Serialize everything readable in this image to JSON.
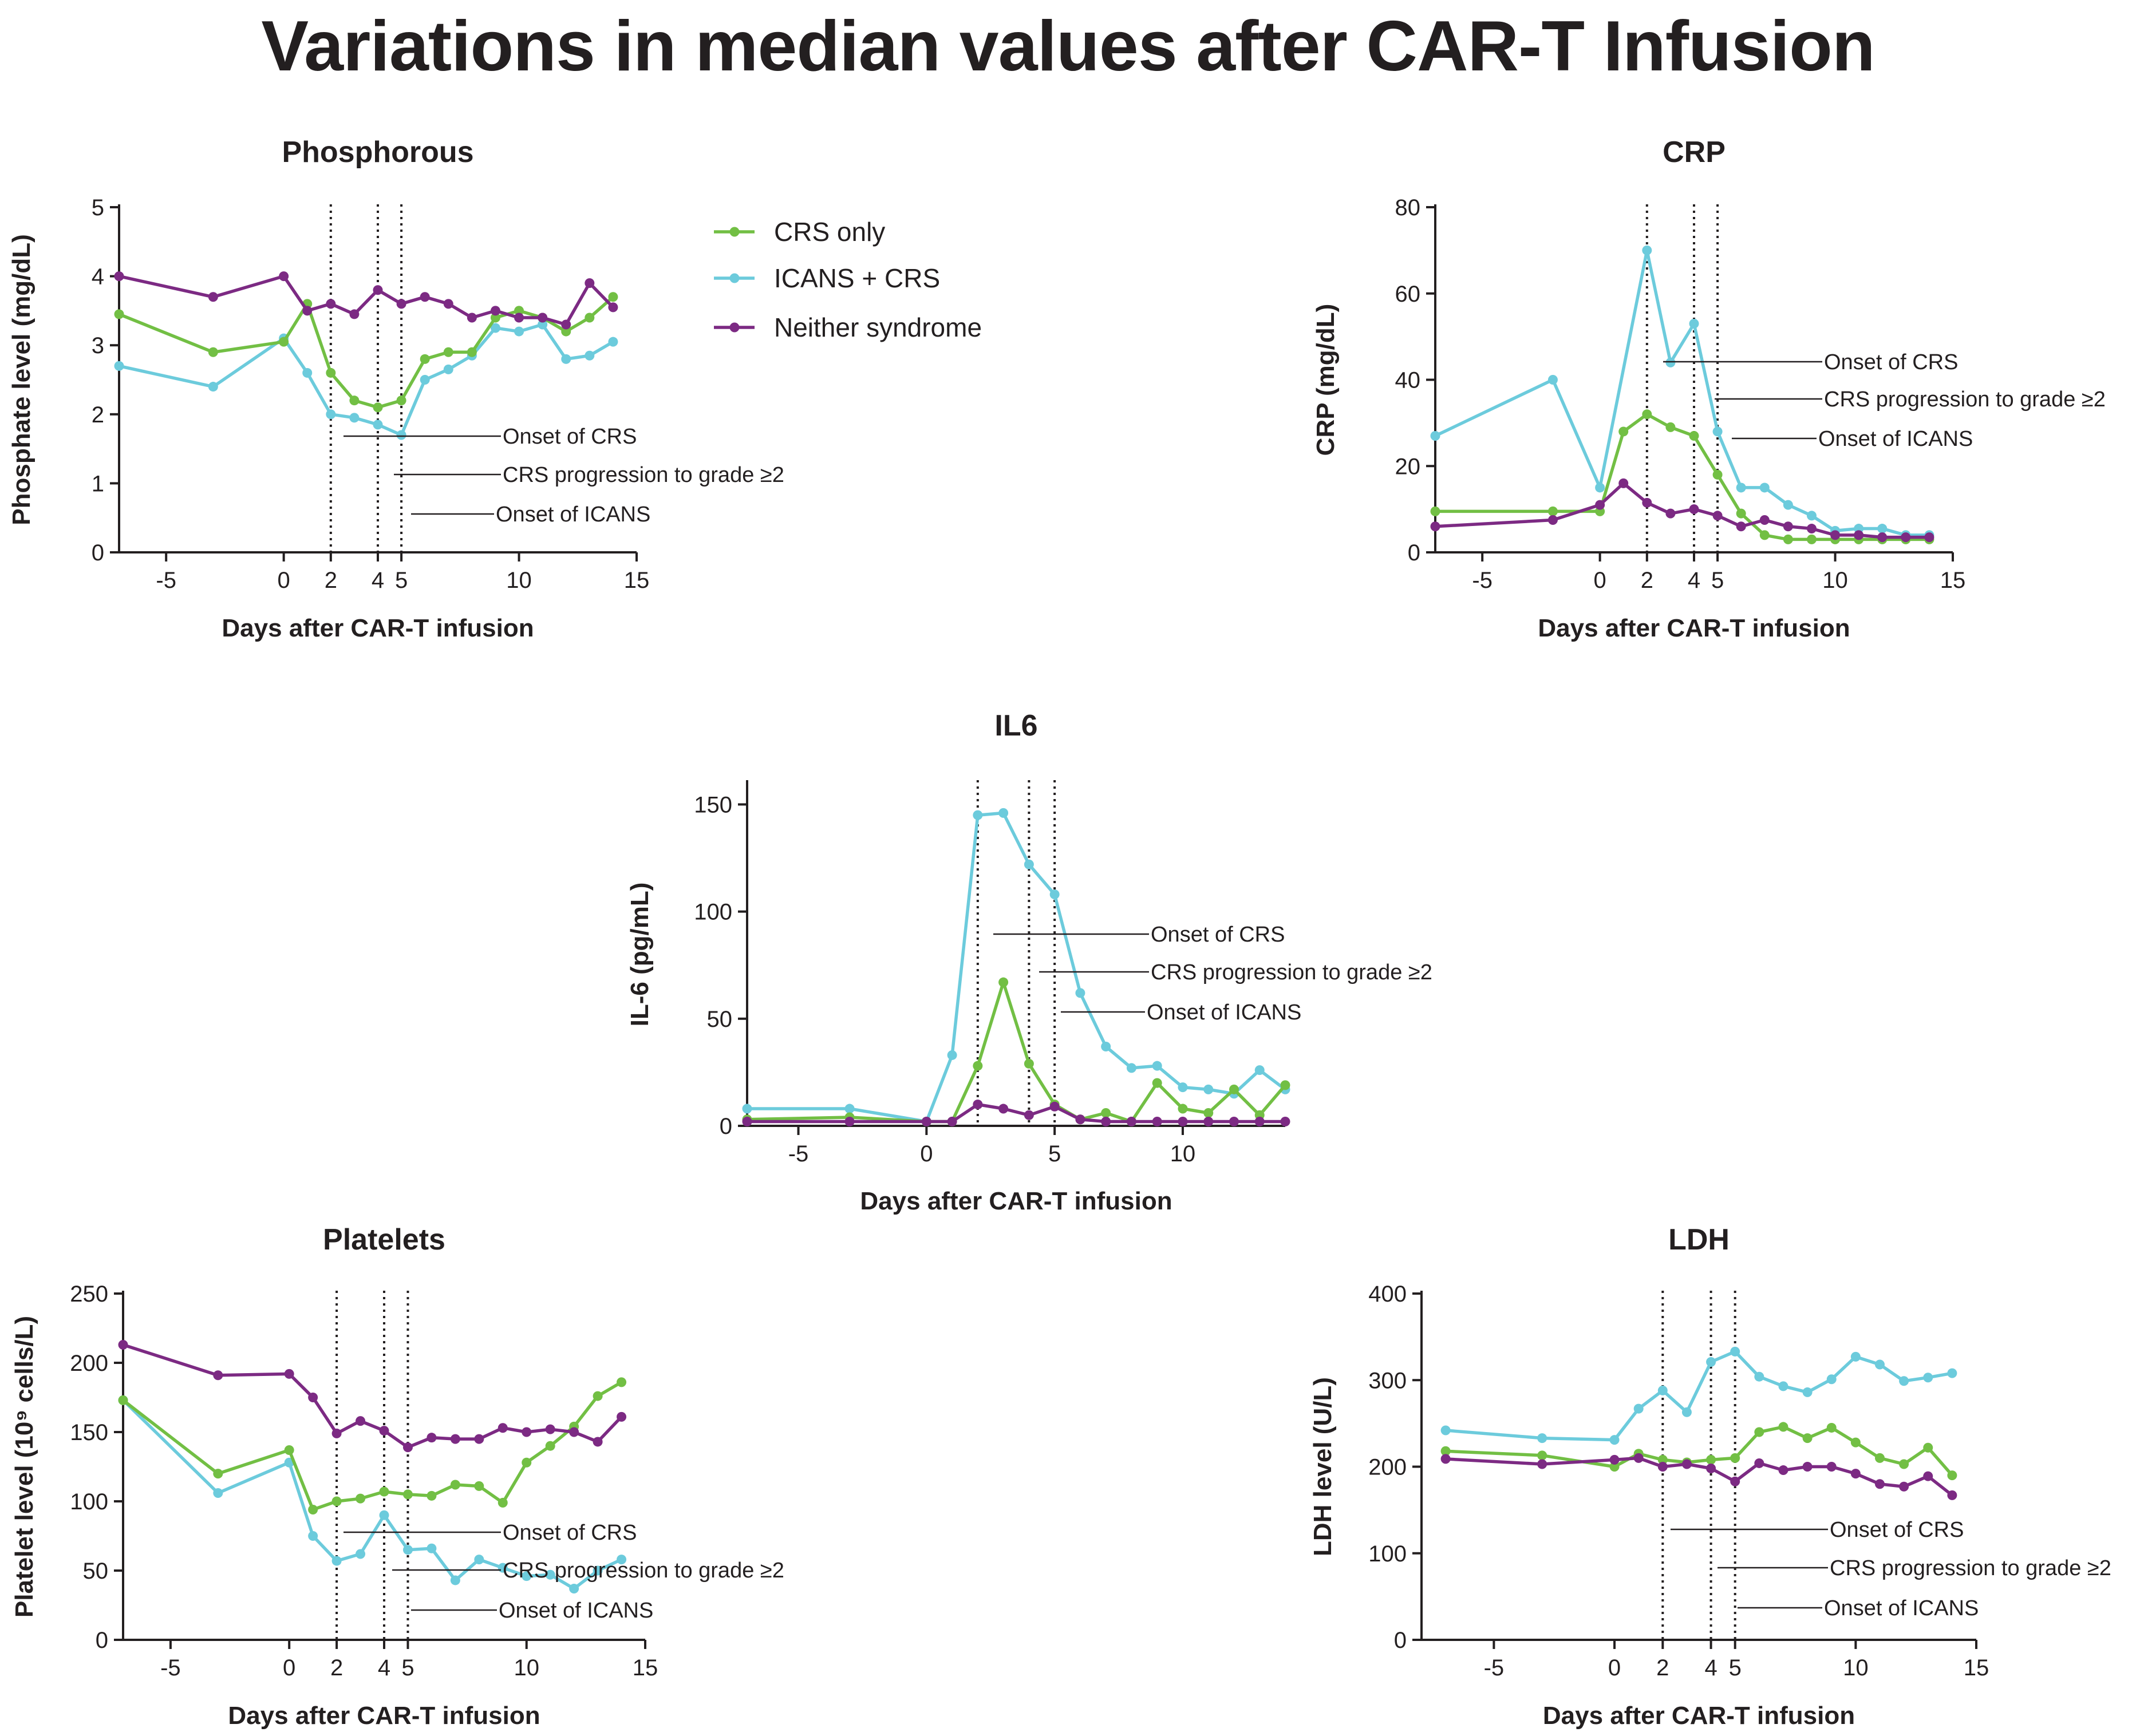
{
  "main_title": "Variations in median values after CAR-T Infusion",
  "colors": {
    "crs_only": "#72bf44",
    "icans_crs": "#6ccbdc",
    "neither": "#7c2a83",
    "axis": "#231f20",
    "vline": "#231f20"
  },
  "legend": [
    {
      "key": "crs_only",
      "label": "CRS only"
    },
    {
      "key": "icans_crs",
      "label": "ICANS + CRS"
    },
    {
      "key": "neither",
      "label": "Neither syndrome"
    }
  ],
  "annotations": [
    "Onset of CRS",
    "CRS progression to grade ≥2",
    "Onset of ICANS"
  ],
  "event_days": [
    2,
    4,
    5
  ],
  "chart_data": [
    {
      "id": "phosphorous",
      "type": "line",
      "title": "Phosphorous",
      "xlabel": "Days after CAR-T infusion",
      "ylabel": "Phosphate level (mg/dL)",
      "xlim": [
        -7,
        15
      ],
      "ylim": [
        0,
        5
      ],
      "xticks": [
        -5,
        0,
        2,
        4,
        5,
        10,
        15
      ],
      "yticks": [
        0,
        1,
        2,
        3,
        4,
        5
      ],
      "series": [
        {
          "name": "CRS only",
          "key": "crs_only",
          "x": [
            -7,
            -3,
            0,
            1,
            2,
            3,
            4,
            5,
            6,
            7,
            8,
            9,
            10,
            11,
            12,
            13,
            14
          ],
          "y": [
            3.45,
            2.9,
            3.05,
            3.6,
            2.6,
            2.2,
            2.1,
            2.2,
            2.8,
            2.9,
            2.9,
            3.4,
            3.5,
            3.4,
            3.2,
            3.4,
            3.7
          ]
        },
        {
          "name": "ICANS + CRS",
          "key": "icans_crs",
          "x": [
            -7,
            -3,
            0,
            1,
            2,
            3,
            4,
            5,
            6,
            7,
            8,
            9,
            10,
            11,
            12,
            13,
            14
          ],
          "y": [
            2.7,
            2.4,
            3.1,
            2.6,
            2.0,
            1.95,
            1.85,
            1.7,
            2.5,
            2.65,
            2.85,
            3.25,
            3.2,
            3.3,
            2.8,
            2.85,
            3.05
          ]
        },
        {
          "name": "Neither syndrome",
          "key": "neither",
          "x": [
            -7,
            -3,
            0,
            1,
            2,
            3,
            4,
            5,
            6,
            7,
            8,
            9,
            10,
            11,
            12,
            13,
            14
          ],
          "y": [
            4.0,
            3.7,
            4.0,
            3.5,
            3.6,
            3.45,
            3.8,
            3.6,
            3.7,
            3.6,
            3.4,
            3.5,
            3.4,
            3.4,
            3.3,
            3.9,
            3.55
          ]
        }
      ]
    },
    {
      "id": "crp",
      "type": "line",
      "title": "CRP",
      "xlabel": "Days after CAR-T infusion",
      "ylabel": "CRP (mg/dL)",
      "xlim": [
        -7,
        15
      ],
      "ylim": [
        0,
        80
      ],
      "xticks": [
        -5,
        0,
        2,
        4,
        5,
        10,
        15
      ],
      "yticks": [
        0,
        20,
        40,
        60,
        80
      ],
      "series": [
        {
          "name": "CRS only",
          "key": "crs_only",
          "x": [
            -7,
            -2,
            0,
            1,
            2,
            3,
            4,
            5,
            6,
            7,
            8,
            9,
            10,
            11,
            12,
            13,
            14
          ],
          "y": [
            9.5,
            9.5,
            9.5,
            28,
            32,
            29,
            27,
            18,
            9,
            4,
            3,
            3,
            3,
            3,
            3,
            3,
            3
          ]
        },
        {
          "name": "ICANS + CRS",
          "key": "icans_crs",
          "x": [
            -7,
            -2,
            0,
            2,
            3,
            4,
            5,
            6,
            7,
            8,
            9,
            10,
            11,
            12,
            13,
            14
          ],
          "y": [
            27,
            40,
            15,
            70,
            44,
            53,
            28,
            15,
            15,
            11,
            8.5,
            5,
            5.5,
            5.5,
            4,
            4
          ]
        },
        {
          "name": "Neither syndrome",
          "key": "neither",
          "x": [
            -7,
            -2,
            0,
            1,
            2,
            3,
            4,
            5,
            6,
            7,
            8,
            9,
            10,
            11,
            12,
            13,
            14
          ],
          "y": [
            6,
            7.5,
            11,
            16,
            11.5,
            9,
            10,
            8.5,
            6,
            7.5,
            6,
            5.5,
            4,
            4,
            3.5,
            3.5,
            3.5
          ]
        }
      ]
    },
    {
      "id": "il6",
      "type": "line",
      "title": "IL6",
      "xlabel": "Days after CAR-T infusion",
      "ylabel": "IL-6 (pg/mL)",
      "xlim": [
        -7,
        14
      ],
      "ylim": [
        0,
        160
      ],
      "xticks": [
        -5,
        0,
        5,
        10
      ],
      "yticks": [
        0,
        50,
        100,
        150
      ],
      "series": [
        {
          "name": "CRS only",
          "key": "crs_only",
          "x": [
            -7,
            -3,
            0,
            1,
            2,
            3,
            4,
            5,
            6,
            7,
            8,
            9,
            10,
            11,
            12,
            13,
            14
          ],
          "y": [
            3,
            4,
            2,
            2,
            28,
            67,
            29,
            10,
            3,
            6,
            2,
            20,
            8,
            6,
            17,
            5,
            19
          ]
        },
        {
          "name": "ICANS + CRS",
          "key": "icans_crs",
          "x": [
            -7,
            -3,
            0,
            1,
            2,
            3,
            4,
            5,
            6,
            7,
            8,
            9,
            10,
            11,
            12,
            13,
            14
          ],
          "y": [
            8,
            8,
            2,
            33,
            145,
            146,
            122,
            108,
            62,
            37,
            27,
            28,
            18,
            17,
            15,
            26,
            17
          ]
        },
        {
          "name": "Neither syndrome",
          "key": "neither",
          "x": [
            -7,
            -3,
            0,
            1,
            2,
            3,
            4,
            5,
            6,
            7,
            8,
            9,
            10,
            11,
            12,
            13,
            14
          ],
          "y": [
            2,
            2,
            2,
            2,
            10,
            8,
            5,
            9,
            3,
            2,
            2,
            2,
            2,
            2,
            2,
            2,
            2
          ]
        }
      ]
    },
    {
      "id": "platelets",
      "type": "line",
      "title": "Platelets",
      "xlabel": "Days after CAR-T infusion",
      "ylabel": "Platelet level (10⁹ cells/L)",
      "xlim": [
        -7,
        15
      ],
      "ylim": [
        0,
        250
      ],
      "xticks": [
        -5,
        0,
        2,
        4,
        5,
        10,
        15
      ],
      "yticks": [
        0,
        50,
        100,
        150,
        200,
        250
      ],
      "series": [
        {
          "name": "CRS only",
          "key": "crs_only",
          "x": [
            -7,
            -3,
            0,
            1,
            2,
            3,
            4,
            5,
            6,
            7,
            8,
            9,
            10,
            11,
            12,
            13,
            14
          ],
          "y": [
            173,
            120,
            137,
            94,
            100,
            102,
            107,
            105,
            104,
            112,
            111,
            99,
            128,
            140,
            154,
            176,
            186
          ]
        },
        {
          "name": "ICANS + CRS",
          "key": "icans_crs",
          "x": [
            -7,
            -3,
            0,
            1,
            2,
            3,
            4,
            5,
            6,
            7,
            8,
            9,
            10,
            11,
            12,
            13,
            14
          ],
          "y": [
            173,
            106,
            128,
            75,
            57,
            62,
            90,
            65,
            66,
            43,
            58,
            52,
            46,
            47,
            37,
            50,
            58
          ]
        },
        {
          "name": "Neither syndrome",
          "key": "neither",
          "x": [
            -7,
            -3,
            0,
            1,
            2,
            3,
            4,
            5,
            6,
            7,
            8,
            9,
            10,
            11,
            12,
            13,
            14
          ],
          "y": [
            213,
            191,
            192,
            175,
            149,
            158,
            151,
            139,
            146,
            145,
            145,
            153,
            150,
            152,
            150,
            143,
            161
          ]
        }
      ]
    },
    {
      "id": "ldh",
      "type": "line",
      "title": "LDH",
      "xlabel": "Days after CAR-T infusion",
      "ylabel": "LDH level (U/L)",
      "xlim": [
        -8,
        15
      ],
      "ylim": [
        0,
        400
      ],
      "xticks": [
        -5,
        0,
        2,
        4,
        5,
        10,
        15
      ],
      "yticks": [
        0,
        100,
        200,
        300,
        400
      ],
      "series": [
        {
          "name": "CRS only",
          "key": "crs_only",
          "x": [
            -7,
            -3,
            0,
            1,
            2,
            3,
            4,
            5,
            6,
            7,
            8,
            9,
            10,
            11,
            12,
            13,
            14
          ],
          "y": [
            218,
            213,
            200,
            215,
            208,
            205,
            208,
            210,
            240,
            246,
            233,
            245,
            228,
            210,
            203,
            222,
            190
          ]
        },
        {
          "name": "ICANS + CRS",
          "key": "icans_crs",
          "x": [
            -7,
            -3,
            0,
            1,
            2,
            3,
            4,
            5,
            6,
            7,
            8,
            9,
            10,
            11,
            12,
            13,
            14
          ],
          "y": [
            242,
            233,
            231,
            267,
            288,
            263,
            321,
            333,
            304,
            293,
            286,
            301,
            327,
            318,
            299,
            303,
            308
          ]
        },
        {
          "name": "Neither syndrome",
          "key": "neither",
          "x": [
            -7,
            -3,
            0,
            1,
            2,
            3,
            4,
            5,
            6,
            7,
            8,
            9,
            10,
            11,
            12,
            13,
            14
          ],
          "y": [
            209,
            203,
            208,
            210,
            200,
            203,
            198,
            183,
            204,
            196,
            200,
            200,
            192,
            180,
            177,
            189,
            167
          ]
        }
      ]
    }
  ]
}
